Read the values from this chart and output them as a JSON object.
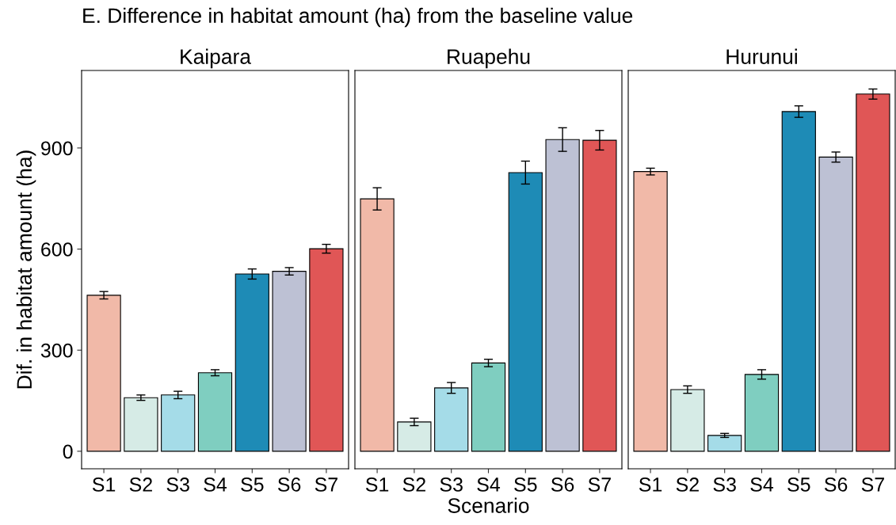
{
  "chart_data": [
    {
      "type": "bar",
      "title": "E. Difference in habitat amount (ha) from the baseline value",
      "subtitle": "Kaipara",
      "ylabel": "Dif. in habitat amount (ha)",
      "categories": [
        "S1",
        "S2",
        "S3",
        "S4",
        "S5",
        "S6",
        "S7"
      ],
      "values": [
        463,
        159,
        167,
        233,
        526,
        534,
        601
      ],
      "errors": [
        11,
        8,
        11,
        9,
        15,
        11,
        13
      ],
      "colors": [
        "#f1b9a8",
        "#d6ebe6",
        "#a5dce8",
        "#7fcec0",
        "#1e8bb6",
        "#bdc1d4",
        "#e05656"
      ],
      "ylim": [
        -52,
        1130
      ],
      "yticks": [
        0,
        300,
        600,
        900
      ],
      "grid": false
    },
    {
      "type": "bar",
      "subtitle": "Ruapehu",
      "xlabel": "Scenario",
      "categories": [
        "S1",
        "S2",
        "S3",
        "S4",
        "S5",
        "S6",
        "S7"
      ],
      "values": [
        749,
        87,
        188,
        262,
        827,
        925,
        923
      ],
      "errors": [
        33,
        11,
        16,
        11,
        34,
        35,
        29
      ],
      "colors": [
        "#f1b9a8",
        "#d6ebe6",
        "#a5dce8",
        "#7fcec0",
        "#1e8bb6",
        "#bdc1d4",
        "#e05656"
      ],
      "ylim": [
        -52,
        1130
      ],
      "yticks": [
        0,
        300,
        600,
        900
      ],
      "tick_labels": "x",
      "grid": false
    },
    {
      "type": "bar",
      "subtitle": "Hurunui",
      "categories": [
        "S1",
        "S2",
        "S3",
        "S4",
        "S5",
        "S6",
        "S7"
      ],
      "values": [
        830,
        183,
        47,
        228,
        1008,
        873,
        1060
      ],
      "errors": [
        10,
        11,
        6,
        14,
        17,
        15,
        15
      ],
      "colors": [
        "#f1b9a8",
        "#d6ebe6",
        "#a5dce8",
        "#7fcec0",
        "#1e8bb6",
        "#bdc1d4",
        "#e05656"
      ],
      "ylim": [
        -52,
        1130
      ],
      "yticks": [
        0,
        300,
        600,
        900
      ],
      "tick_labels": "x",
      "grid": false
    }
  ]
}
